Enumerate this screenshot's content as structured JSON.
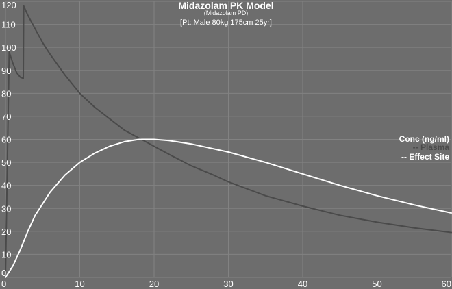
{
  "chart_data": {
    "type": "line",
    "title": "Midazolam PK Model",
    "subtitle": "(Midazolam PD)",
    "patient": "[Pt: Male 80kg 175cm 25yr]",
    "xlim": [
      0,
      60
    ],
    "ylim": [
      0,
      120
    ],
    "x_ticks": [
      "0",
      "10",
      "20",
      "30",
      "40",
      "50",
      "60"
    ],
    "y_ticks": [
      "0",
      "10",
      "20",
      "30",
      "40",
      "50",
      "60",
      "70",
      "80",
      "90",
      "100",
      "110",
      "120"
    ],
    "grid": true,
    "legend": {
      "title": "Conc (ng/ml)",
      "position": "right",
      "entries": [
        "-- Plasma",
        "-- Effect Site"
      ]
    },
    "series": [
      {
        "name": "Plasma",
        "color": "#4a4a4a",
        "x": [
          0,
          0.5,
          1,
          1.5,
          2,
          2.4,
          2.45,
          3,
          4,
          5,
          6,
          8,
          10,
          12,
          14,
          16,
          18,
          20,
          22,
          25,
          28,
          30,
          35,
          40,
          45,
          50,
          55,
          60
        ],
        "y": [
          0,
          98,
          93,
          89,
          87,
          86.5,
          118,
          114,
          108,
          102,
          97,
          88,
          80,
          74,
          69,
          64,
          60.5,
          57,
          53.5,
          48.5,
          44.5,
          41.5,
          35.5,
          31,
          27,
          24,
          21.5,
          19.5
        ]
      },
      {
        "name": "Effect Site",
        "color": "#ffffff",
        "x": [
          0,
          1,
          2,
          3,
          4,
          5,
          6,
          8,
          10,
          12,
          14,
          16,
          18,
          20,
          22,
          25,
          30,
          35,
          40,
          45,
          50,
          55,
          60
        ],
        "y": [
          0,
          5,
          12,
          20,
          27,
          32,
          37,
          44.5,
          50,
          54,
          57,
          59,
          60,
          60,
          59.5,
          58,
          54.5,
          50,
          45,
          40,
          35.5,
          31.5,
          28
        ]
      }
    ]
  }
}
